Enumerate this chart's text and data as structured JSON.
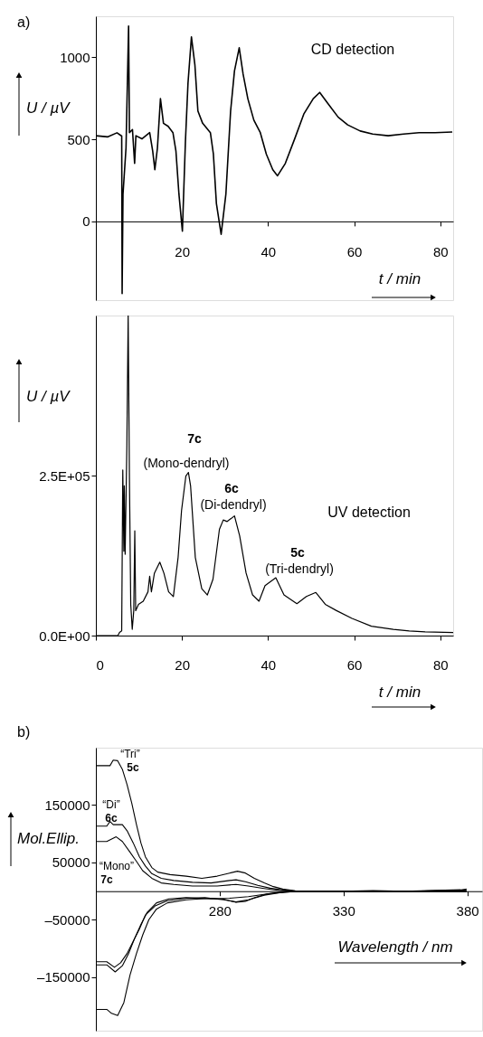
{
  "chart_data": [
    {
      "type": "line",
      "xlabel": "t / min",
      "ylabel": "U / µV",
      "annotations": [
        "a)",
        "CD detection"
      ],
      "xlim": [
        0,
        83
      ],
      "ylim": [
        -480,
        1250
      ],
      "xticks": [
        20,
        40,
        60,
        80
      ],
      "yticks": [
        0,
        500,
        1000
      ],
      "grid": false,
      "x": [
        0,
        2.7,
        4.9,
        6.0,
        6.1,
        6.3,
        7.0,
        7.6,
        7.8,
        8.5,
        9.0,
        9.3,
        10.7,
        12.5,
        13.2,
        13.7,
        14.3,
        15.0,
        15.7,
        16.8,
        17.9,
        18.6,
        19.3,
        20.1,
        20.8,
        21.4,
        22.2,
        23.0,
        23.7,
        24.8,
        26.6,
        27.3,
        28.0,
        29.1,
        30.2,
        31.3,
        32.2,
        33.3,
        34.2,
        35.3,
        36.7,
        38.2,
        39.6,
        41.1,
        42.2,
        44.0,
        46.2,
        48.3,
        50.5,
        52.0,
        54.1,
        56.3,
        58.5,
        61.4,
        64.3,
        67.9,
        71.5,
        75.1,
        78.8,
        82.8
      ],
      "series": [
        {
          "color": "#000000",
          "values": [
            522,
            515,
            540,
            520,
            -440,
            165,
            447,
            1190,
            541,
            560,
            353,
            522,
            503,
            541,
            428,
            315,
            447,
            748,
            598,
            579,
            541,
            428,
            165,
            -60,
            485,
            842,
            1124,
            955,
            673,
            598,
            541,
            410,
            109,
            -79,
            165,
            673,
            917,
            1058,
            898,
            748,
            617,
            541,
            410,
            315,
            278,
            353,
            504,
            654,
            748,
            786,
            711,
            635,
            588,
            551,
            532,
            522,
            532,
            541,
            541,
            545
          ]
        }
      ]
    },
    {
      "type": "line",
      "xlabel": "t / min",
      "ylabel": "U / µV",
      "annotations": [
        "7c",
        "(Mono-dendryl)",
        "6c",
        "(Di-dendryl)",
        "5c",
        "(Tri-dendryl)",
        "UV detection"
      ],
      "xlim": [
        0,
        83
      ],
      "ylim": [
        0,
        500000
      ],
      "xticks": [
        0,
        20,
        40,
        60,
        80
      ],
      "yticks": [
        {
          "value": 0,
          "label": "0.0E+00"
        },
        {
          "value": 250000,
          "label": "2.5E+05"
        }
      ],
      "grid": false,
      "x": [
        0,
        5.1,
        5.5,
        6.0,
        6.25,
        6.5,
        6.6,
        6.8,
        7.2,
        7.5,
        7.8,
        8.1,
        8.45,
        8.8,
        9.04,
        9.25,
        9.9,
        11.0,
        12.1,
        12.5,
        12.9,
        13.6,
        14.85,
        15.8,
        16.9,
        18.0,
        19.1,
        19.9,
        20.9,
        21.5,
        22.0,
        23.1,
        24.6,
        25.9,
        27.2,
        28.7,
        29.6,
        30.5,
        32.2,
        33.4,
        34.9,
        36.4,
        37.9,
        39.3,
        41.8,
        43.7,
        46.7,
        48.9,
        51.1,
        53.3,
        55.9,
        59.5,
        64.0,
        69.1,
        72.8,
        76.5,
        83.0
      ],
      "series": [
        {
          "color": "#000000",
          "values": [
            0,
            0,
            4900,
            7300,
            258800,
            131800,
            234000,
            127000,
            297800,
            500000,
            244000,
            48800,
            9800,
            39000,
            163600,
            39000,
            48800,
            53700,
            68300,
            92800,
            68300,
            97600,
            114700,
            97600,
            68300,
            61000,
            122000,
            195300,
            249000,
            254900,
            234000,
            122000,
            73200,
            63500,
            87900,
            166000,
            180600,
            178200,
            187000,
            156000,
            97600,
            63500,
            53700,
            78100,
            90300,
            63500,
            49800,
            61000,
            67400,
            48800,
            39000,
            26800,
            14600,
            9800,
            7300,
            5900,
            4900
          ]
        }
      ]
    },
    {
      "type": "line",
      "xlabel": "Wavelength / nm",
      "ylabel": "Mol.Ellip.",
      "annotations": [
        "b)",
        "“Tri”",
        "5c",
        "“Di”",
        "6c",
        "“Mono”",
        "7c"
      ],
      "xlim": [
        230,
        386
      ],
      "ylim": [
        -243000,
        250000
      ],
      "xticks": [
        280,
        330,
        380
      ],
      "yticks": [
        150000,
        50000,
        {
          "value": -50000,
          "label": "–50000"
        },
        {
          "value": -150000,
          "label": "–150000"
        }
      ],
      "grid": false,
      "series": [
        {
          "color": "#000000",
          "x": [
            230,
            235.7,
            237,
            238.8,
            240.7,
            242.6,
            244.5,
            246.4,
            248.2,
            250,
            252.6,
            255,
            260,
            266.5,
            272.8,
            279,
            284,
            287.2,
            290.4,
            294,
            298,
            301.7,
            305.5,
            310.5,
            316.8,
            329.4,
            342,
            354.6,
            367.2,
            377,
            379.7
          ],
          "values": [
            218700,
            218700,
            228300,
            227300,
            212300,
            185600,
            153500,
            116000,
            84000,
            59900,
            41200,
            33200,
            28900,
            26200,
            22500,
            26200,
            31600,
            34800,
            31600,
            22500,
            14400,
            8000,
            3700,
            500,
            0,
            0,
            1000,
            0,
            500,
            1000,
            3700
          ]
        },
        {
          "color": "#000000",
          "x": [
            230,
            234.4,
            235.7,
            237,
            240.7,
            242.6,
            245.1,
            247.6,
            250,
            252.6,
            256.4,
            261.4,
            269,
            276.5,
            284,
            286.6,
            290.4,
            295.4,
            300.4,
            305.5,
            311.8,
            329.4,
            354.6,
            379.7
          ],
          "values": [
            113400,
            113400,
            121400,
            116000,
            116000,
            105300,
            84000,
            59900,
            43900,
            30500,
            22500,
            18700,
            15500,
            14400,
            18700,
            19800,
            16600,
            10200,
            5300,
            2100,
            0,
            0,
            0,
            2700
          ]
        },
        {
          "color": "#000000",
          "x": [
            230,
            234.4,
            238.2,
            240.7,
            243.8,
            246.4,
            248.9,
            252.6,
            256.4,
            261.4,
            269,
            279,
            286.6,
            291.6,
            297.9,
            304.2,
            310.5,
            329.4,
            354.6,
            379.7
          ],
          "values": [
            86600,
            86600,
            94700,
            86600,
            67900,
            51900,
            35800,
            22500,
            14400,
            11800,
            9100,
            9100,
            11800,
            9100,
            4800,
            1100,
            0,
            0,
            0,
            1000
          ]
        },
        {
          "color": "#000000",
          "x": [
            230,
            234.4,
            237.5,
            240,
            242.6,
            245.1,
            247.6,
            250,
            253.9,
            258.9,
            266.5,
            274,
            281.6,
            286.6,
            291.6,
            298,
            304.2,
            310.5,
            316.8,
            354.6,
            379.7
          ],
          "values": [
            -123000,
            -123000,
            -132600,
            -124600,
            -108600,
            -87200,
            -65800,
            -41700,
            -25700,
            -16600,
            -12300,
            -11200,
            -15000,
            -18700,
            -15000,
            -7000,
            -2700,
            -500,
            0,
            0,
            -500
          ]
        },
        {
          "color": "#000000",
          "x": [
            230,
            234.4,
            237.8,
            240.7,
            243.2,
            245.7,
            248.2,
            250.8,
            254.5,
            259.5,
            266.5,
            276.5,
            284,
            291.6,
            299.1,
            306.7,
            314.3,
            354.6,
            379.7
          ],
          "values": [
            -128300,
            -128300,
            -140600,
            -129900,
            -108600,
            -81800,
            -57800,
            -36400,
            -20300,
            -13400,
            -11200,
            -13400,
            -12300,
            -9600,
            -4800,
            -1600,
            0,
            0,
            -500
          ]
        },
        {
          "color": "#000000",
          "x": [
            230,
            234.4,
            236.3,
            238.8,
            241.3,
            243.8,
            246.4,
            248.9,
            251.4,
            254.5,
            258.9,
            266.5,
            276.5,
            281.6,
            286.6,
            290.4,
            294.2,
            299.1,
            304.2,
            311.8,
            354.6,
            379.7
          ],
          "values": [
            -205900,
            -205900,
            -212800,
            -216600,
            -194100,
            -146000,
            -108600,
            -76500,
            -49700,
            -31000,
            -20300,
            -15000,
            -12300,
            -13900,
            -19300,
            -17600,
            -11200,
            -4800,
            -1600,
            0,
            0,
            1000
          ]
        }
      ]
    }
  ]
}
